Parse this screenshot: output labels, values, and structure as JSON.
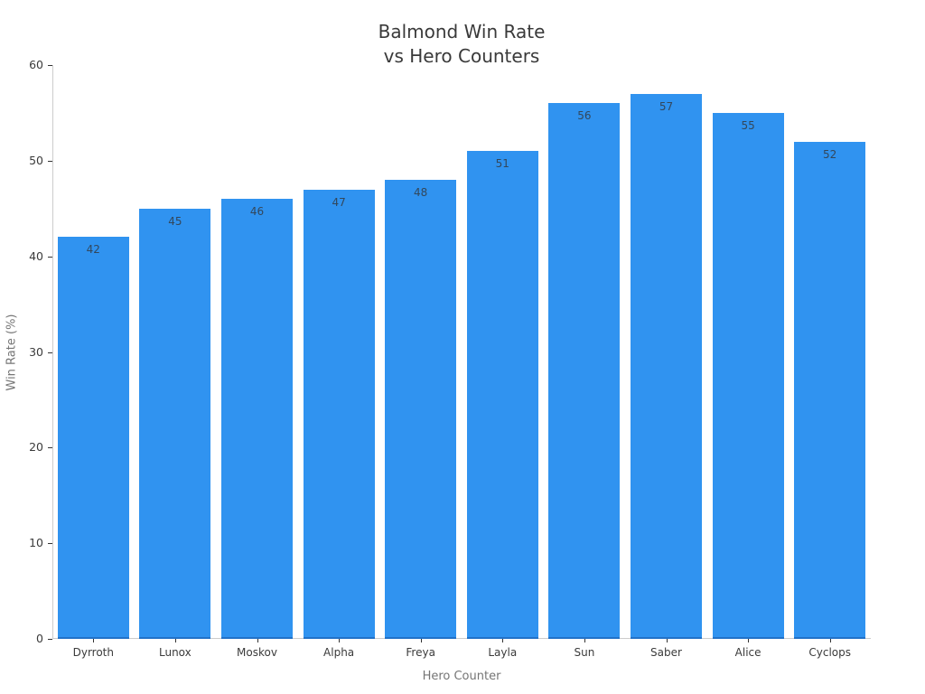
{
  "title": {
    "lines": [
      "Balmond Win Rate",
      "vs Hero Counters"
    ]
  },
  "chart_data": {
    "type": "bar",
    "title": "Balmond Win Rate vs Hero Counters",
    "title_lines": [
      "Balmond Win Rate",
      "vs Hero Counters"
    ],
    "categories": [
      "Dyrroth",
      "Lunox",
      "Moskov",
      "Alpha",
      "Freya",
      "Layla",
      "Sun",
      "Saber",
      "Alice",
      "Cyclops"
    ],
    "values": [
      42,
      45,
      46,
      47,
      48,
      51,
      56,
      57,
      55,
      52
    ],
    "value_labels": [
      "42",
      "45",
      "46",
      "47",
      "48",
      "51",
      "56",
      "57",
      "55",
      "52"
    ],
    "xlabel": "Hero Counter",
    "ylabel": "Win Rate (%)",
    "ylim": [
      0,
      60
    ],
    "yticks": [
      0,
      10,
      20,
      30,
      40,
      50,
      60
    ],
    "grid": false,
    "legend": null,
    "colors": {
      "bar": "#3093f0",
      "bar_bottom_edge": "#2272c8",
      "value_label": "#33475b",
      "tick_label": "#3b3b3b",
      "tick_mark": "#333333",
      "spine": "#cccccc",
      "axis_label": "#757575",
      "title": "#3a3a3a",
      "background": "#ffffff"
    }
  }
}
